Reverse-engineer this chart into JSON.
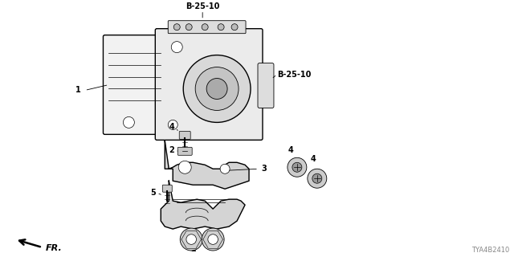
{
  "bg_color": "#ffffff",
  "part_number_label": "TYA4B2410",
  "fr_label": "FR.",
  "label_b2510_top": "B-25-10",
  "label_b2510_right": "B-25-10",
  "line_color": "#000000",
  "gray_light": "#e8e8e8",
  "gray_mid": "#cccccc",
  "gray_dark": "#999999"
}
